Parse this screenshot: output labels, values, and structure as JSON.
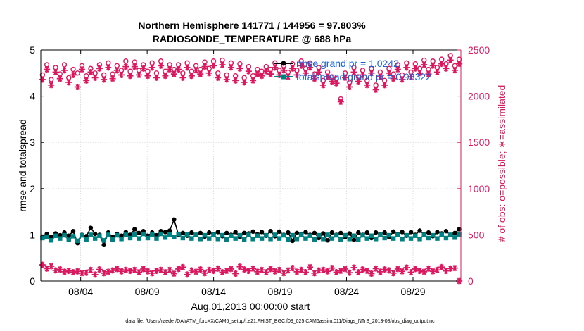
{
  "chart_data": {
    "type": "line",
    "title": "Northern Hemisphere 141771 / 144956 = 97.803%",
    "subtitle": "RADIOSONDE_TEMPERATURE @ 688 hPa",
    "xlabel": "Aug.01,2013 00:00:00 start",
    "ylabel_left": "rmse and totalspread",
    "ylabel_right": "# of obs: o=possible; ∗=assimilated",
    "x_ticks": [
      "08/04",
      "08/09",
      "08/14",
      "08/19",
      "08/24",
      "08/29"
    ],
    "x_tick_days": [
      4,
      9,
      14,
      19,
      24,
      29
    ],
    "x_range_days": [
      1,
      32.6
    ],
    "ylim_left": [
      0,
      5
    ],
    "ylim_right": [
      0,
      2500
    ],
    "yticks_left": [
      "0",
      "1",
      "2",
      "3",
      "4",
      "5"
    ],
    "yticks_right": [
      "0",
      "500",
      "1000",
      "1500",
      "2000",
      "2500"
    ],
    "legend": {
      "position": "top-right",
      "entries": [
        "rmse grand pr = 1.0242",
        "totalspread grand pr = 0.98322"
      ]
    },
    "colors": {
      "rmse": "#000000",
      "totalspread": "#008080",
      "obs": "#d8195f",
      "legend_text": "#1a5fd6",
      "axis_right": "#d8195f"
    },
    "series": [
      {
        "name": "rmse",
        "axis": "left",
        "values": [
          0.96,
          1.02,
          0.95,
          1.03,
          0.99,
          1.05,
          0.98,
          1.08,
          0.82,
          1.0,
          0.97,
          1.15,
          1.02,
          1.0,
          0.78,
          1.05,
          0.95,
          1.02,
          0.98,
          1.06,
          1.0,
          1.12,
          1.04,
          1.08,
          0.98,
          1.05,
          0.99,
          1.08,
          1.06,
          1.09,
          1.33,
          1.0,
          1.04,
          0.98,
          1.05,
          1.0,
          1.04,
          0.96,
          1.05,
          1.01,
          1.06,
          0.97,
          1.04,
          1.0,
          1.06,
          0.95,
          1.04,
          1.03,
          1.07,
          1.01,
          1.06,
          0.98,
          1.08,
          0.97,
          1.07,
          1.0,
          1.05,
          0.87,
          1.04,
          1.02,
          1.06,
          1.0,
          1.04,
          0.93,
          1.03,
          0.88,
          1.05,
          1.0,
          1.04,
          0.95,
          1.03,
          0.89,
          1.05,
          1.0,
          1.05,
          0.93,
          1.05,
          1.01,
          1.05,
          0.95,
          1.07,
          1.02,
          1.06,
          0.98,
          1.06,
          1.0,
          1.09,
          1.01,
          1.05,
          0.97,
          1.06,
          1.03,
          1.08,
          1.0,
          1.04,
          1.12
        ]
      },
      {
        "name": "totalspread",
        "axis": "left",
        "values": [
          0.93,
          0.96,
          0.88,
          0.98,
          0.92,
          0.99,
          0.89,
          0.97,
          0.87,
          0.99,
          0.9,
          1.0,
          0.92,
          0.98,
          0.88,
          1.0,
          0.9,
          0.99,
          0.91,
          1.0,
          0.93,
          1.01,
          0.92,
          1.02,
          0.93,
          1.01,
          0.92,
          1.02,
          0.94,
          1.01,
          0.95,
          1.02,
          0.93,
          1.01,
          0.92,
          1.0,
          0.91,
          0.99,
          0.92,
          1.0,
          0.91,
          0.99,
          0.9,
          0.98,
          0.92,
          0.99,
          0.9,
          1.0,
          0.91,
          0.98,
          0.92,
          0.99,
          0.91,
          1.0,
          0.92,
          0.99,
          0.9,
          0.99,
          0.91,
          1.0,
          0.92,
          0.98,
          0.9,
          0.99,
          0.91,
          1.0,
          0.92,
          0.99,
          0.9,
          0.99,
          0.91,
          0.98,
          0.9,
          0.99,
          0.92,
          0.98,
          0.91,
          1.0,
          0.93,
          0.99,
          0.92,
          1.0,
          0.91,
          0.99,
          0.92,
          0.98,
          0.91,
          1.0,
          0.93,
          0.99,
          0.92,
          1.0,
          0.93,
          1.0,
          0.94,
          1.01
        ]
      },
      {
        "name": "possible",
        "axis": "right",
        "marker": "o",
        "values": [
          2230,
          2340,
          2180,
          2310,
          2240,
          2340,
          2200,
          2290,
          2250,
          2330,
          2220,
          2300,
          2250,
          2340,
          2230,
          2360,
          2240,
          2330,
          2280,
          2380,
          2270,
          2370,
          2280,
          2340,
          2270,
          2360,
          2250,
          2380,
          2270,
          2340,
          2290,
          2340,
          2250,
          2360,
          2270,
          2330,
          2290,
          2370,
          2300,
          2380,
          2250,
          2390,
          2230,
          2360,
          2220,
          2350,
          2200,
          2320,
          2220,
          2290,
          2270,
          2320,
          2290,
          2360,
          2280,
          2330,
          2260,
          2350,
          2280,
          2380,
          2300,
          2360,
          2240,
          2310,
          2170,
          2260,
          2210,
          2190,
          1970,
          2250,
          2150,
          2310,
          2210,
          2280,
          2170,
          2300,
          2120,
          2260,
          2170,
          2300,
          2240,
          2340,
          2230,
          2360,
          2260,
          2350,
          2300,
          2390,
          2290,
          2380,
          2310,
          2400,
          2350,
          2440,
          2330,
          2400
        ]
      },
      {
        "name": "assimilated",
        "axis": "right",
        "marker": "*",
        "values": [
          2180,
          2290,
          2120,
          2260,
          2190,
          2280,
          2150,
          2230,
          2100,
          2290,
          2170,
          2260,
          2200,
          2300,
          2180,
          2310,
          2190,
          2280,
          2230,
          2320,
          2220,
          2320,
          2230,
          2300,
          2220,
          2310,
          2200,
          2330,
          2220,
          2290,
          2240,
          2290,
          2200,
          2310,
          2220,
          2280,
          2240,
          2320,
          2250,
          2330,
          2200,
          2340,
          2180,
          2310,
          2170,
          2300,
          2150,
          2270,
          2170,
          2240,
          2220,
          2270,
          2240,
          2310,
          2230,
          2280,
          2210,
          2300,
          2230,
          2330,
          2250,
          2310,
          2190,
          2260,
          2120,
          2210,
          2160,
          2140,
          1940,
          2200,
          2100,
          2260,
          2160,
          2230,
          2120,
          2250,
          2070,
          2210,
          2120,
          2250,
          2190,
          2290,
          2180,
          2310,
          2210,
          2300,
          2250,
          2340,
          2240,
          2330,
          2260,
          2350,
          2300,
          2390,
          2280,
          2350
        ]
      },
      {
        "name": "rejected",
        "axis": "right",
        "marker": "*",
        "values": [
          175,
          135,
          160,
          115,
          125,
          100,
          110,
          95,
          105,
          85,
          90,
          120,
          70,
          125,
          85,
          100,
          115,
          130,
          105,
          120,
          110,
          120,
          95,
          130,
          105,
          85,
          110,
          120,
          95,
          120,
          80,
          130,
          150,
          70,
          115,
          100,
          125,
          85,
          120,
          110,
          135,
          95,
          110,
          130,
          80,
          155,
          125,
          110,
          135,
          100,
          120,
          95,
          130,
          105,
          120,
          85,
          115,
          140,
          100,
          120,
          95,
          150,
          85,
          115,
          120,
          105,
          140,
          95,
          110,
          130,
          90,
          145,
          95,
          125,
          110,
          80,
          135,
          100,
          125,
          115,
          85,
          130,
          105,
          145,
          95,
          130,
          110,
          100,
          135,
          105,
          120,
          150,
          110,
          135,
          140,
          0
        ]
      }
    ],
    "footer": "data file: /Users/raeder/DAI/ATM_forcXX/CAM6_setup/f.e21.FHIST_BGC.f09_025.CAM6assim.011/Diags_NTrS_2013-08/obs_diag_output.nc"
  }
}
